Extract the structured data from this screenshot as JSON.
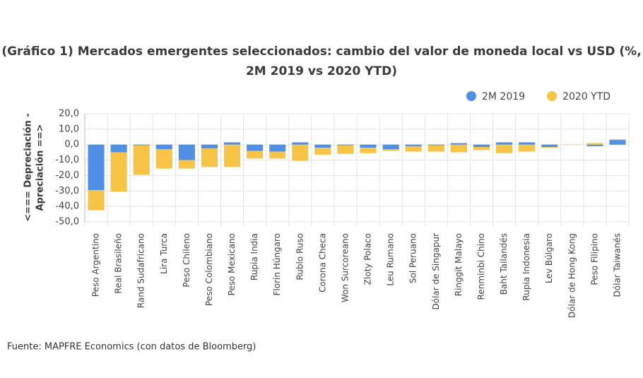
{
  "chart_data": {
    "type": "bar",
    "stacked": true,
    "title": [
      "(Gráfico 1) Mercados emergentes seleccionados: cambio del valor de moneda local vs USD (%,",
      "2M 2019 vs 2020 YTD)"
    ],
    "y_label": [
      "<=== Depreciación -",
      "Apreciación ==>"
    ],
    "source": "Fuente: MAPFRE Economics (con datos de Bloomberg)",
    "categories": [
      "Peso Argentino",
      "Real Brasileño",
      "Rand Sudafricano",
      "Lira Turca",
      "Peso Chileno",
      "Peso Colombiano",
      "Peso Mexicano",
      "Rupia India",
      "Florín Húngaro",
      "Rublo Ruso",
      "Corona Checa",
      "Won Surcoreano",
      "Zloty Polaco",
      "Leu Rumano",
      "Sol Peruano",
      "Dólar de Singapur",
      "Ringgit Malayo",
      "Renminbi Chino",
      "Baht Tailandés",
      "Rupia Indonesia",
      "Lev Búlgaro",
      "Dólar de Hong Kong",
      "Peso Filipino",
      "Dólar Taiwanés"
    ],
    "series": [
      {
        "name": "2M 2019",
        "color": "#4f8fe6",
        "values": [
          -29.5,
          -5,
          -0.5,
          -3,
          -10,
          -2.5,
          1.5,
          -4,
          -4.5,
          1.5,
          -2,
          -0.5,
          -2,
          -3,
          -1,
          -0.5,
          1,
          -1.5,
          1.5,
          1.5,
          -1.5,
          0,
          -1,
          3
        ]
      },
      {
        "name": "2020 YTD",
        "color": "#f8c446",
        "values": [
          -13,
          -25.5,
          -19,
          -12.5,
          -5.5,
          -12,
          -14.5,
          -5,
          -4.5,
          -10.5,
          -4.5,
          -5.5,
          -3.5,
          -1,
          -3.5,
          -4,
          -5,
          -2,
          -5.5,
          -4.5,
          -0.5,
          -0.3,
          1,
          0.5
        ]
      }
    ],
    "ylim": [
      -50,
      20
    ],
    "yticks": [
      {
        "value": -50,
        "label": "-50,0"
      },
      {
        "value": -40,
        "label": "-40,0"
      },
      {
        "value": -30,
        "label": "-30,0"
      },
      {
        "value": -20,
        "label": "-20,0"
      },
      {
        "value": -10,
        "label": "-10,0"
      },
      {
        "value": 0,
        "label": "0,0"
      },
      {
        "value": 10,
        "label": "10,0"
      },
      {
        "value": 20,
        "label": "20,0"
      }
    ],
    "grid": true,
    "legend": "top-right"
  }
}
